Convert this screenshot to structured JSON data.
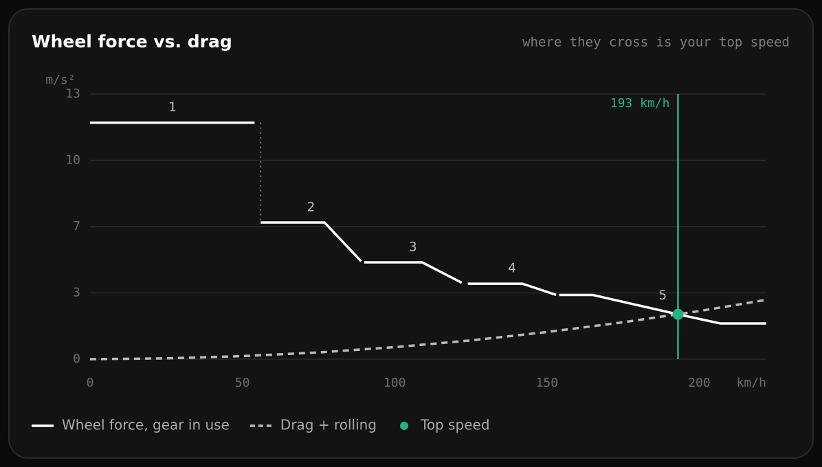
{
  "chart_data": {
    "type": "line",
    "title": "Wheel force vs. drag",
    "subtitle": "where they cross is your top speed",
    "y_label": "m/s²",
    "x_label": "km/h",
    "xlim": [
      0,
      222
    ],
    "ylim": [
      0,
      13
    ],
    "xticks": [
      0,
      50,
      100,
      150,
      200
    ],
    "yticks": [
      0,
      {
        "value": 3.25,
        "label": "3"
      },
      {
        "value": 6.5,
        "label": "7"
      },
      {
        "value": 9.75,
        "label": "10"
      },
      13
    ],
    "grid": true,
    "series": [
      {
        "name": "Wheel force, gear in use",
        "color": "#ffffff",
        "style": "solid",
        "x": [
          0,
          54,
          null,
          56,
          77,
          89,
          null,
          90,
          109,
          122,
          null,
          124,
          142,
          153,
          null,
          154,
          165,
          193,
          207,
          222
        ],
        "values": [
          11.6,
          11.6,
          null,
          6.7,
          6.7,
          4.8,
          null,
          4.75,
          4.75,
          3.75,
          null,
          3.7,
          3.7,
          3.15,
          null,
          3.15,
          3.15,
          2.2,
          1.75,
          1.75
        ]
      },
      {
        "name": "Drag + rolling",
        "color": "#b9b9c0",
        "style": "dashed",
        "x": [
          0,
          25,
          50,
          75,
          100,
          125,
          150,
          175,
          200,
          222
        ],
        "values": [
          0,
          0.04,
          0.15,
          0.33,
          0.59,
          0.92,
          1.33,
          1.81,
          2.36,
          2.91
        ]
      }
    ],
    "gear_labels": [
      "1",
      "2",
      "3",
      "4",
      "5"
    ],
    "top_speed": {
      "name": "Top speed",
      "x": 193,
      "value": 2.2,
      "label": "193 km/h",
      "color": "#1fb585"
    }
  }
}
